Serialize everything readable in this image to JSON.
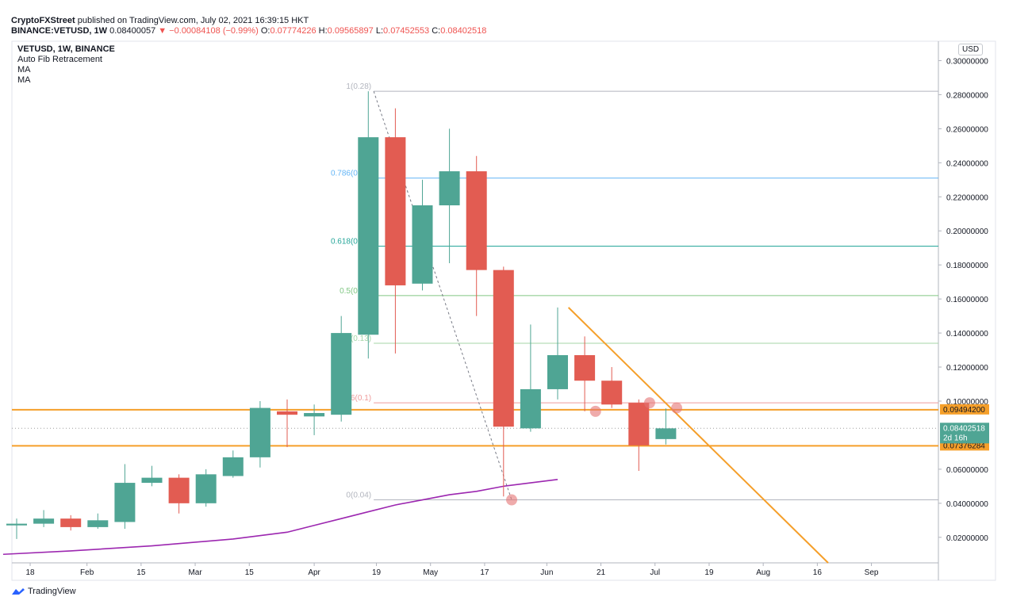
{
  "header": {
    "line1": "CryptoFXStreet published on TradingView.com, July 02, 2021 16:39:15 HKT",
    "symbol": "BINANCE:VETUSD, 1W",
    "price": "0.08400057",
    "change": "−0.00084108 (−0.99%)",
    "o_label": "O:",
    "o_val": "0.07774226",
    "h_label": "H:",
    "h_val": "0.09565897",
    "l_label": "L:",
    "l_val": "0.07452553",
    "c_label": "C:",
    "c_val": "0.08402518"
  },
  "legend": {
    "title": "VETUSD, 1W, BINANCE",
    "items": [
      "Auto Fib Retracement",
      "MA",
      "MA"
    ]
  },
  "currency": "USD",
  "footer": {
    "brand": "TradingView"
  },
  "colors": {
    "up": "#4fa594",
    "down": "#e25c52",
    "ma": "#9c27b0",
    "orange": "#f59f2a"
  },
  "chart_data": {
    "type": "candlestick",
    "title": "VETUSD, 1W, BINANCE",
    "ylim": [
      0.005,
      0.31
    ],
    "y_ticks": [
      "0.30000000",
      "0.28000000",
      "0.26000000",
      "0.24000000",
      "0.22000000",
      "0.20000000",
      "0.18000000",
      "0.16000000",
      "0.14000000",
      "0.12000000",
      "0.10000000",
      "0.06000000",
      "0.04000000",
      "0.02000000"
    ],
    "y_tick_values": [
      0.3,
      0.28,
      0.26,
      0.24,
      0.22,
      0.2,
      0.18,
      0.16,
      0.14,
      0.12,
      0.1,
      0.06,
      0.04,
      0.02
    ],
    "x_ticks": [
      {
        "label": "18",
        "i": 0.5
      },
      {
        "label": "Feb",
        "i": 2.6
      },
      {
        "label": "15",
        "i": 4.6
      },
      {
        "label": "Mar",
        "i": 6.6
      },
      {
        "label": "15",
        "i": 8.6
      },
      {
        "label": "Apr",
        "i": 11
      },
      {
        "label": "19",
        "i": 13.3
      },
      {
        "label": "May",
        "i": 15.3
      },
      {
        "label": "17",
        "i": 17.3
      },
      {
        "label": "Jun",
        "i": 19.6
      },
      {
        "label": "21",
        "i": 21.6
      },
      {
        "label": "Jul",
        "i": 23.6
      },
      {
        "label": "19",
        "i": 25.6
      },
      {
        "label": "Aug",
        "i": 27.6
      },
      {
        "label": "16",
        "i": 29.6
      },
      {
        "label": "Sep",
        "i": 31.6
      }
    ],
    "candles": [
      {
        "o": 0.027,
        "h": 0.031,
        "l": 0.019,
        "c": 0.028
      },
      {
        "o": 0.028,
        "h": 0.036,
        "l": 0.026,
        "c": 0.031
      },
      {
        "o": 0.031,
        "h": 0.033,
        "l": 0.024,
        "c": 0.026
      },
      {
        "o": 0.026,
        "h": 0.034,
        "l": 0.025,
        "c": 0.03
      },
      {
        "o": 0.029,
        "h": 0.063,
        "l": 0.025,
        "c": 0.052
      },
      {
        "o": 0.052,
        "h": 0.062,
        "l": 0.05,
        "c": 0.055
      },
      {
        "o": 0.055,
        "h": 0.057,
        "l": 0.034,
        "c": 0.04
      },
      {
        "o": 0.04,
        "h": 0.06,
        "l": 0.038,
        "c": 0.057
      },
      {
        "o": 0.056,
        "h": 0.071,
        "l": 0.055,
        "c": 0.067
      },
      {
        "o": 0.067,
        "h": 0.1,
        "l": 0.061,
        "c": 0.096
      },
      {
        "o": 0.094,
        "h": 0.101,
        "l": 0.073,
        "c": 0.092
      },
      {
        "o": 0.091,
        "h": 0.098,
        "l": 0.08,
        "c": 0.093
      },
      {
        "o": 0.092,
        "h": 0.15,
        "l": 0.088,
        "c": 0.14
      },
      {
        "o": 0.139,
        "h": 0.282,
        "l": 0.125,
        "c": 0.255
      },
      {
        "o": 0.255,
        "h": 0.272,
        "l": 0.128,
        "c": 0.168
      },
      {
        "o": 0.169,
        "h": 0.23,
        "l": 0.165,
        "c": 0.215
      },
      {
        "o": 0.215,
        "h": 0.26,
        "l": 0.181,
        "c": 0.235
      },
      {
        "o": 0.235,
        "h": 0.244,
        "l": 0.15,
        "c": 0.177
      },
      {
        "o": 0.177,
        "h": 0.179,
        "l": 0.044,
        "c": 0.085
      },
      {
        "o": 0.084,
        "h": 0.145,
        "l": 0.082,
        "c": 0.107
      },
      {
        "o": 0.107,
        "h": 0.155,
        "l": 0.101,
        "c": 0.127
      },
      {
        "o": 0.127,
        "h": 0.138,
        "l": 0.094,
        "c": 0.112
      },
      {
        "o": 0.112,
        "h": 0.12,
        "l": 0.096,
        "c": 0.098
      },
      {
        "o": 0.099,
        "h": 0.101,
        "l": 0.059,
        "c": 0.074
      },
      {
        "o": 0.0777,
        "h": 0.0957,
        "l": 0.0745,
        "c": 0.084
      }
    ],
    "ma": [
      [
        -0.5,
        0.01
      ],
      [
        2,
        0.012
      ],
      [
        5,
        0.015
      ],
      [
        8,
        0.019
      ],
      [
        10,
        0.023
      ],
      [
        11,
        0.027
      ],
      [
        12,
        0.031
      ],
      [
        13,
        0.035
      ],
      [
        14,
        0.039
      ],
      [
        15,
        0.042
      ],
      [
        16,
        0.045
      ],
      [
        17,
        0.047
      ],
      [
        18,
        0.05
      ],
      [
        19,
        0.052
      ],
      [
        20,
        0.054
      ]
    ],
    "fib_levels": [
      {
        "label": "1(0.28)",
        "value": 0.282,
        "color": "#b2b5be"
      },
      {
        "label": "0.786(0.23)",
        "value": 0.231,
        "color": "#64b5f6"
      },
      {
        "label": "0.618(0.19)",
        "value": 0.191,
        "color": "#26a69a"
      },
      {
        "label": "0.5(0.16)",
        "value": 0.162,
        "color": "#81c784"
      },
      {
        "label": "0.382(0.13)",
        "value": 0.134,
        "color": "#a5d6a7"
      },
      {
        "label": "0.236(0.1)",
        "value": 0.099,
        "color": "#ef9a9a"
      },
      {
        "label": "0(0.04)",
        "value": 0.042,
        "color": "#b2b5be"
      }
    ],
    "levels": [
      {
        "value": 0.094942,
        "label": "0.09494200"
      },
      {
        "value": 0.07376284,
        "label": "0.07376284"
      }
    ],
    "last_price": {
      "value": 0.08402518,
      "label": "0.08402518",
      "countdown": "2d 16h"
    },
    "trendline": [
      [
        20.4,
        0.155
      ],
      [
        30.0,
        0.005
      ]
    ],
    "touch_points": [
      [
        21.4,
        0.094
      ],
      [
        23.4,
        0.099
      ],
      [
        24.4,
        0.096
      ],
      [
        18.3,
        0.042
      ]
    ]
  }
}
